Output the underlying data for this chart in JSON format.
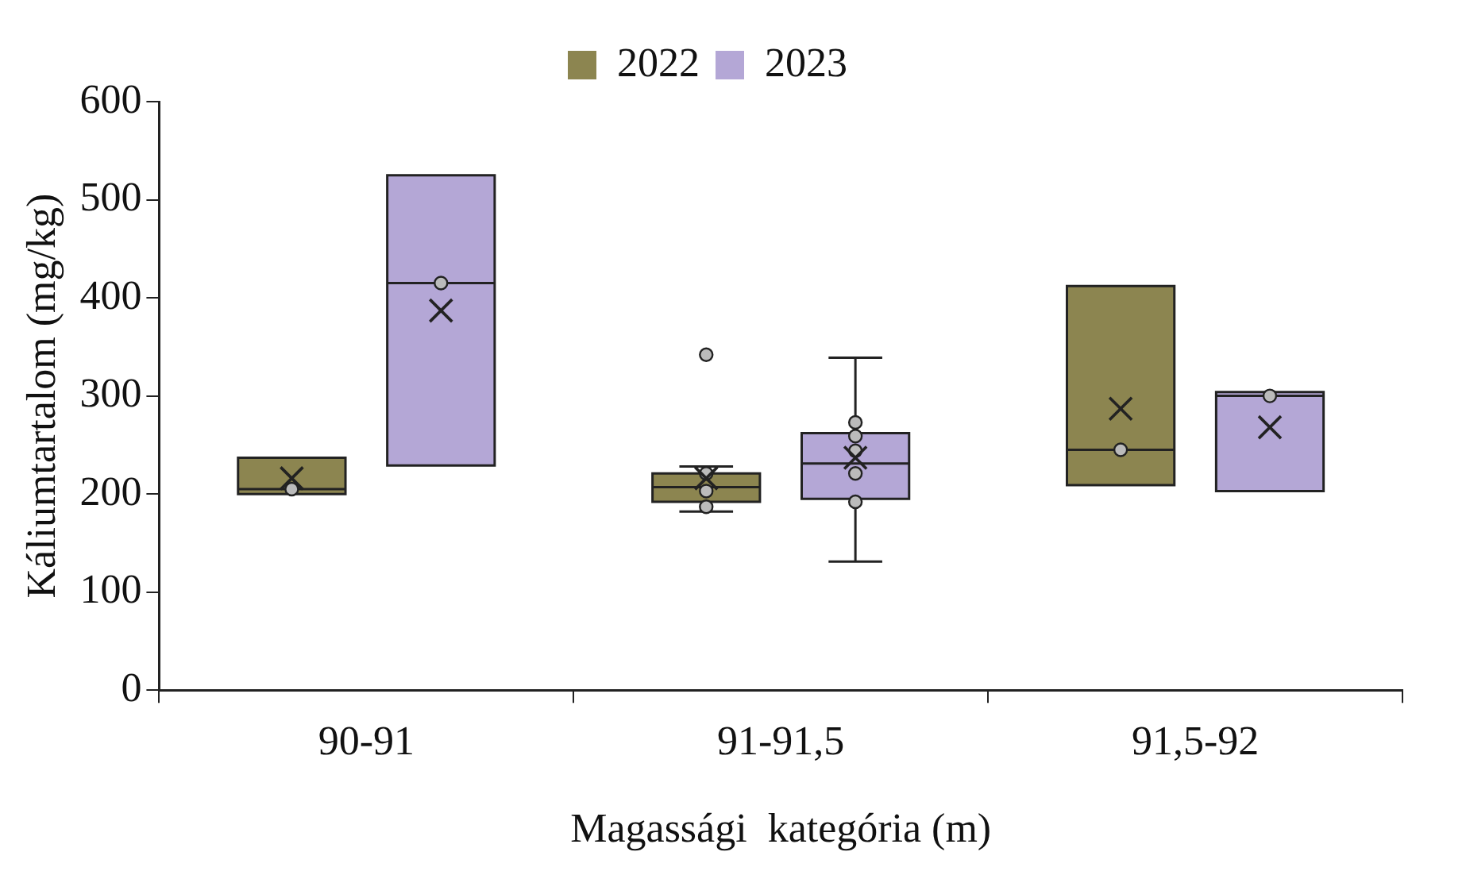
{
  "chart_data": {
    "type": "box",
    "xlabel": "Magassági  kategória (m)",
    "ylabel": "Káliumtartalom (mg/kg)",
    "categories": [
      "90-91",
      "91-91,5",
      "91,5-92"
    ],
    "ylim": [
      0,
      600
    ],
    "yticks": [
      0,
      100,
      200,
      300,
      400,
      500,
      600
    ],
    "grid": false,
    "legend": "top",
    "series": [
      {
        "name": "2022",
        "color": "#8c8550",
        "boxes": [
          {
            "low": 200,
            "q1": 200,
            "median": 205,
            "q3": 237,
            "high": 237,
            "mean": 216,
            "outliers": [
              205
            ]
          },
          {
            "low": 182,
            "q1": 192,
            "median": 207,
            "q3": 221,
            "high": 228,
            "mean": 216,
            "outliers": [
              342,
              221,
              203,
              187
            ]
          },
          {
            "low": 209,
            "q1": 209,
            "median": 245,
            "q3": 412,
            "high": 412,
            "mean": 287,
            "outliers": [
              245
            ]
          }
        ]
      },
      {
        "name": "2023",
        "color": "#b4a7d6",
        "boxes": [
          {
            "low": 229,
            "q1": 229,
            "median": 415,
            "q3": 525,
            "high": 525,
            "mean": 387,
            "outliers": [
              415
            ]
          },
          {
            "low": 131,
            "q1": 195,
            "median": 231,
            "q3": 262,
            "high": 339,
            "mean": 237,
            "outliers": [
              273,
              259,
              244,
              221,
              192
            ]
          },
          {
            "low": 203,
            "q1": 203,
            "median": 300,
            "q3": 304,
            "high": 304,
            "mean": 268,
            "outliers": [
              300
            ]
          }
        ]
      }
    ]
  }
}
